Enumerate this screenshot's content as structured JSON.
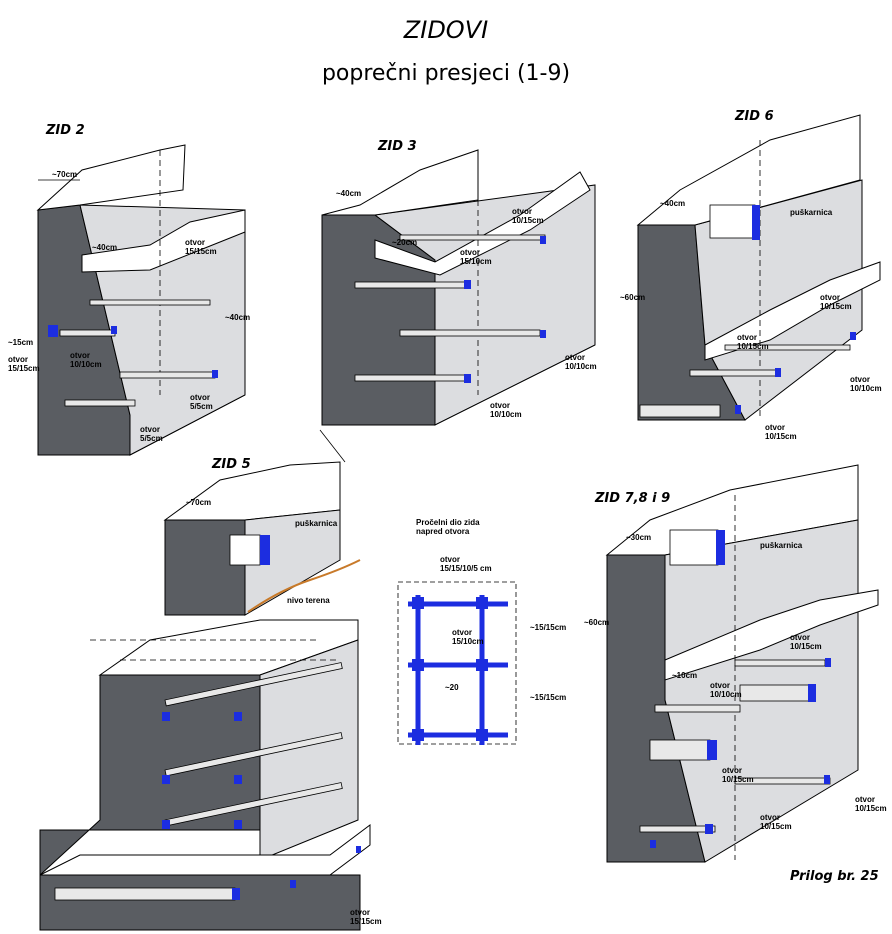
{
  "title": "ZIDOVI",
  "subtitle": "poprečni presjeci (1-9)",
  "annex": "Prilog br. 25",
  "colors": {
    "opening": "#1c2de0",
    "terrain": "#c87a2a",
    "wall_face": "#5a5d62",
    "wall_side": "#dcdde0"
  },
  "walls": {
    "zid2": {
      "label": "ZID 2",
      "dim_top": "~70cm",
      "dim_a": "~40cm",
      "dim_b": "~15cm",
      "dim_c": "~40cm",
      "otvor_a": "otvor\n15/15cm",
      "otvor_b": "otvor\n10/10cm",
      "otvor_c": "otvor\n5/5cm",
      "otvor_d": "otvor\n5/5cm",
      "otvor_e": "otvor\n15/15cm"
    },
    "zid3": {
      "label": "ZID 3",
      "dim_top": "~40cm",
      "dim_a": "~20cm",
      "otvor_a": "otvor\n10/15cm",
      "otvor_b": "otvor\n15/10cm",
      "otvor_c": "otvor\n10/10cm",
      "otvor_d": "otvor\n10/10cm"
    },
    "zid6": {
      "label": "ZID 6",
      "dim_top": "~40cm",
      "dim_a": "~60cm",
      "pusk": "puškarnica",
      "otvor_a": "otvor\n10/15cm",
      "otvor_b": "otvor\n10/15cm",
      "otvor_c": "otvor\n10/10cm",
      "otvor_d": "otvor\n10/15cm"
    },
    "zid5": {
      "label": "ZID 5",
      "dim_top": "~70cm",
      "pusk": "puškarnica",
      "terrain": "nivo terena",
      "otvor_a": "otvor\n15/15cm"
    },
    "zid789": {
      "label": "ZID 7,8 i 9",
      "dim_top": "~30cm",
      "dim_a": "~60cm",
      "dim_b": "~10cm",
      "pusk": "puškarnica",
      "otvor_a": "otvor\n10/15cm",
      "otvor_b": "otvor\n10/10cm",
      "otvor_c": "otvor\n10/15cm",
      "otvor_d": "otvor\n10/15cm",
      "otvor_e": "otvor\n10/15cm"
    }
  },
  "grid": {
    "title": "Pročelni dio zida\nnapred otvora",
    "otvor_a": "otvor\n15/15/10/5 cm",
    "otvor_b": "otvor\n15/10cm",
    "dim_h": "~20",
    "dim_v1": "~15/15cm",
    "dim_v2": "~15/15cm"
  }
}
